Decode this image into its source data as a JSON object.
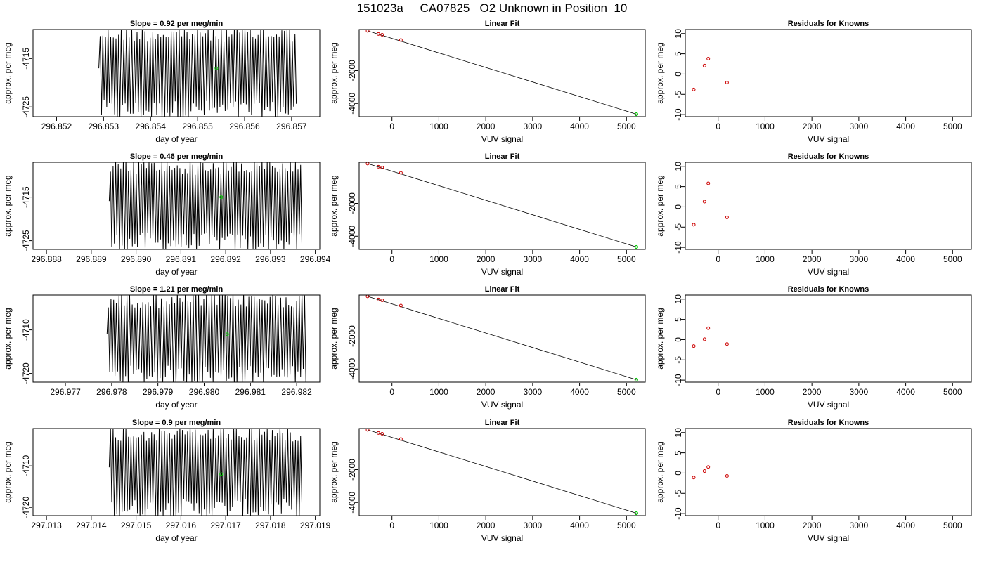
{
  "page_title": "151023a     CA07825   O2 Unknown in Position  10",
  "colors": {
    "trace": "#000000",
    "known_point": "#cc0000",
    "unknown_point": "#00cc00",
    "fit_line": "#000000"
  },
  "chart_data": [
    {
      "type": "line",
      "title": "Slope =  0.92  per meg/min",
      "xlabel": "day of year",
      "ylabel": "approx. per meg",
      "xlim": [
        296.8515,
        296.8576
      ],
      "ylim": [
        -4727,
        -4709
      ],
      "x_ticks": [
        296.852,
        296.853,
        296.854,
        296.855,
        296.856,
        296.857
      ],
      "x_tick_labels": [
        "296.852",
        "296.853",
        "296.854",
        "296.855",
        "296.856",
        "296.857"
      ],
      "y_ticks": [
        -4715,
        -4725
      ],
      "y_tick_labels": [
        "-4715",
        "-4725"
      ],
      "series": [
        {
          "x_start": 296.8529,
          "x_end": 296.8571,
          "y_min": -4728,
          "y_max": -4708,
          "style": "oscillating-trace"
        }
      ],
      "marker": {
        "x": 296.8554,
        "y": -4717
      }
    },
    {
      "type": "scatter",
      "title": "Linear Fit",
      "xlabel": "VUV signal",
      "ylabel": "approx. per meg",
      "xlim": [
        -700,
        5400
      ],
      "ylim": [
        -4800,
        500
      ],
      "x_ticks": [
        0,
        1000,
        2000,
        3000,
        4000,
        5000
      ],
      "x_tick_labels": [
        "0",
        "1000",
        "2000",
        "3000",
        "4000",
        "5000"
      ],
      "y_ticks": [
        -2000,
        -4000
      ],
      "y_tick_labels": [
        "-2000",
        "-4000"
      ],
      "knowns": [
        {
          "x": -520,
          "y": 420
        },
        {
          "x": -290,
          "y": 230
        },
        {
          "x": -210,
          "y": 180
        },
        {
          "x": 190,
          "y": -140
        }
      ],
      "unknown": {
        "x": 5210,
        "y": -4650
      },
      "fit": {
        "x": [
          -520,
          5210
        ],
        "y": [
          420,
          -4650
        ]
      }
    },
    {
      "type": "scatter",
      "title": "Residuals for Knowns",
      "xlabel": "VUV signal",
      "ylabel": "approx. per meg",
      "xlim": [
        -700,
        5400
      ],
      "ylim": [
        -10.5,
        11
      ],
      "x_ticks": [
        0,
        1000,
        2000,
        3000,
        4000,
        5000
      ],
      "x_tick_labels": [
        "0",
        "1000",
        "2000",
        "3000",
        "4000",
        "5000"
      ],
      "y_ticks": [
        10,
        5,
        0,
        -5,
        -10
      ],
      "y_tick_labels": [
        "10",
        "5",
        "0",
        "-5",
        "-10"
      ],
      "knowns": [
        {
          "x": -520,
          "y": -3.8
        },
        {
          "x": -290,
          "y": 2.1
        },
        {
          "x": -210,
          "y": 3.8
        },
        {
          "x": 190,
          "y": -2.1
        }
      ]
    },
    {
      "type": "line",
      "title": "Slope =  0.46  per meg/min",
      "xlabel": "day of year",
      "ylabel": "approx. per meg",
      "xlim": [
        296.8877,
        296.8941
      ],
      "ylim": [
        -4727,
        -4707
      ],
      "x_ticks": [
        296.888,
        296.889,
        296.89,
        296.891,
        296.892,
        296.893,
        296.894
      ],
      "x_tick_labels": [
        "296.888",
        "296.889",
        "296.890",
        "296.891",
        "296.892",
        "296.893",
        "296.894"
      ],
      "y_ticks": [
        -4715,
        -4725
      ],
      "y_tick_labels": [
        "-4715",
        "-4725"
      ],
      "series": [
        {
          "x_start": 296.8894,
          "x_end": 296.8937,
          "y_min": -4728,
          "y_max": -4706,
          "style": "oscillating-trace"
        }
      ],
      "marker": {
        "x": 296.8919,
        "y": -4715
      }
    },
    {
      "type": "scatter",
      "title": "Linear Fit",
      "xlabel": "VUV signal",
      "ylabel": "approx. per meg",
      "xlim": [
        -700,
        5400
      ],
      "ylim": [
        -4800,
        500
      ],
      "x_ticks": [
        0,
        1000,
        2000,
        3000,
        4000,
        5000
      ],
      "x_tick_labels": [
        "0",
        "1000",
        "2000",
        "3000",
        "4000",
        "5000"
      ],
      "y_ticks": [
        -2000,
        -4000
      ],
      "y_tick_labels": [
        "-2000",
        "-4000"
      ],
      "knowns": [
        {
          "x": -520,
          "y": 420
        },
        {
          "x": -290,
          "y": 230
        },
        {
          "x": -210,
          "y": 180
        },
        {
          "x": 190,
          "y": -140
        }
      ],
      "unknown": {
        "x": 5210,
        "y": -4650
      },
      "fit": {
        "x": [
          -520,
          5210
        ],
        "y": [
          420,
          -4650
        ]
      }
    },
    {
      "type": "scatter",
      "title": "Residuals for Knowns",
      "xlabel": "VUV signal",
      "ylabel": "approx. per meg",
      "xlim": [
        -700,
        5400
      ],
      "ylim": [
        -10.5,
        11
      ],
      "x_ticks": [
        0,
        1000,
        2000,
        3000,
        4000,
        5000
      ],
      "x_tick_labels": [
        "0",
        "1000",
        "2000",
        "3000",
        "4000",
        "5000"
      ],
      "y_ticks": [
        10,
        5,
        0,
        -5,
        -10
      ],
      "y_tick_labels": [
        "10",
        "5",
        "0",
        "-5",
        "-10"
      ],
      "knowns": [
        {
          "x": -520,
          "y": -4.4
        },
        {
          "x": -290,
          "y": 1.3
        },
        {
          "x": -210,
          "y": 5.8
        },
        {
          "x": 190,
          "y": -2.6
        }
      ]
    },
    {
      "type": "line",
      "title": "Slope =  1.21  per meg/min",
      "xlabel": "day of year",
      "ylabel": "approx. per meg",
      "xlim": [
        296.9763,
        296.9825
      ],
      "ylim": [
        -4722,
        -4702
      ],
      "x_ticks": [
        296.977,
        296.978,
        296.979,
        296.98,
        296.981,
        296.982
      ],
      "x_tick_labels": [
        "296.977",
        "296.978",
        "296.979",
        "296.980",
        "296.981",
        "296.982"
      ],
      "y_ticks": [
        -4710,
        -4720
      ],
      "y_tick_labels": [
        "-4710",
        "-4720"
      ],
      "series": [
        {
          "x_start": 296.9779,
          "x_end": 296.9822,
          "y_min": -4723,
          "y_max": -4701,
          "style": "oscillating-trace"
        }
      ],
      "marker": {
        "x": 296.9805,
        "y": -4711
      }
    },
    {
      "type": "scatter",
      "title": "Linear Fit",
      "xlabel": "VUV signal",
      "ylabel": "approx. per meg",
      "xlim": [
        -700,
        5400
      ],
      "ylim": [
        -4800,
        500
      ],
      "x_ticks": [
        0,
        1000,
        2000,
        3000,
        4000,
        5000
      ],
      "x_tick_labels": [
        "0",
        "1000",
        "2000",
        "3000",
        "4000",
        "5000"
      ],
      "y_ticks": [
        -2000,
        -4000
      ],
      "y_tick_labels": [
        "-2000",
        "-4000"
      ],
      "knowns": [
        {
          "x": -520,
          "y": 420
        },
        {
          "x": -290,
          "y": 230
        },
        {
          "x": -210,
          "y": 180
        },
        {
          "x": 190,
          "y": -140
        }
      ],
      "unknown": {
        "x": 5210,
        "y": -4650
      },
      "fit": {
        "x": [
          -520,
          5210
        ],
        "y": [
          420,
          -4650
        ]
      }
    },
    {
      "type": "scatter",
      "title": "Residuals for Knowns",
      "xlabel": "VUV signal",
      "ylabel": "approx. per meg",
      "xlim": [
        -700,
        5400
      ],
      "ylim": [
        -10.5,
        11
      ],
      "x_ticks": [
        0,
        1000,
        2000,
        3000,
        4000,
        5000
      ],
      "x_tick_labels": [
        "0",
        "1000",
        "2000",
        "3000",
        "4000",
        "5000"
      ],
      "y_ticks": [
        10,
        5,
        0,
        -5,
        -10
      ],
      "y_tick_labels": [
        "10",
        "5",
        "0",
        "-5",
        "-10"
      ],
      "knowns": [
        {
          "x": -520,
          "y": -1.6
        },
        {
          "x": -290,
          "y": 0.1
        },
        {
          "x": -210,
          "y": 2.8
        },
        {
          "x": 190,
          "y": -1.1
        }
      ]
    },
    {
      "type": "line",
      "title": "Slope =  0.9  per meg/min",
      "xlabel": "day of year",
      "ylabel": "approx. per meg",
      "xlim": [
        297.0127,
        297.0191
      ],
      "ylim": [
        -4722,
        -4701
      ],
      "x_ticks": [
        297.013,
        297.014,
        297.015,
        297.016,
        297.017,
        297.018,
        297.019
      ],
      "x_tick_labels": [
        "297.013",
        "297.014",
        "297.015",
        "297.016",
        "297.017",
        "297.018",
        "297.019"
      ],
      "y_ticks": [
        -4710,
        -4720
      ],
      "y_tick_labels": [
        "-4710",
        "-4720"
      ],
      "series": [
        {
          "x_start": 297.0144,
          "x_end": 297.0187,
          "y_min": -4723,
          "y_max": -4700,
          "style": "oscillating-trace"
        }
      ],
      "marker": {
        "x": 297.0169,
        "y": -4712
      }
    },
    {
      "type": "scatter",
      "title": "Linear Fit",
      "xlabel": "VUV signal",
      "ylabel": "approx. per meg",
      "xlim": [
        -700,
        5400
      ],
      "ylim": [
        -4800,
        500
      ],
      "x_ticks": [
        0,
        1000,
        2000,
        3000,
        4000,
        5000
      ],
      "x_tick_labels": [
        "0",
        "1000",
        "2000",
        "3000",
        "4000",
        "5000"
      ],
      "y_ticks": [
        -2000,
        -4000
      ],
      "y_tick_labels": [
        "-2000",
        "-4000"
      ],
      "knowns": [
        {
          "x": -520,
          "y": 420
        },
        {
          "x": -290,
          "y": 230
        },
        {
          "x": -210,
          "y": 180
        },
        {
          "x": 190,
          "y": -140
        }
      ],
      "unknown": {
        "x": 5210,
        "y": -4650
      },
      "fit": {
        "x": [
          -520,
          5210
        ],
        "y": [
          420,
          -4650
        ]
      }
    },
    {
      "type": "scatter",
      "title": "Residuals for Knowns",
      "xlabel": "VUV signal",
      "ylabel": "approx. per meg",
      "xlim": [
        -700,
        5400
      ],
      "ylim": [
        -10.5,
        11
      ],
      "x_ticks": [
        0,
        1000,
        2000,
        3000,
        4000,
        5000
      ],
      "x_tick_labels": [
        "0",
        "1000",
        "2000",
        "3000",
        "4000",
        "5000"
      ],
      "y_ticks": [
        10,
        5,
        0,
        -5,
        -10
      ],
      "y_tick_labels": [
        "10",
        "5",
        "0",
        "-5",
        "-10"
      ],
      "knowns": [
        {
          "x": -520,
          "y": -1.1
        },
        {
          "x": -290,
          "y": 0.5
        },
        {
          "x": -210,
          "y": 1.5
        },
        {
          "x": 190,
          "y": -0.7
        }
      ]
    }
  ]
}
